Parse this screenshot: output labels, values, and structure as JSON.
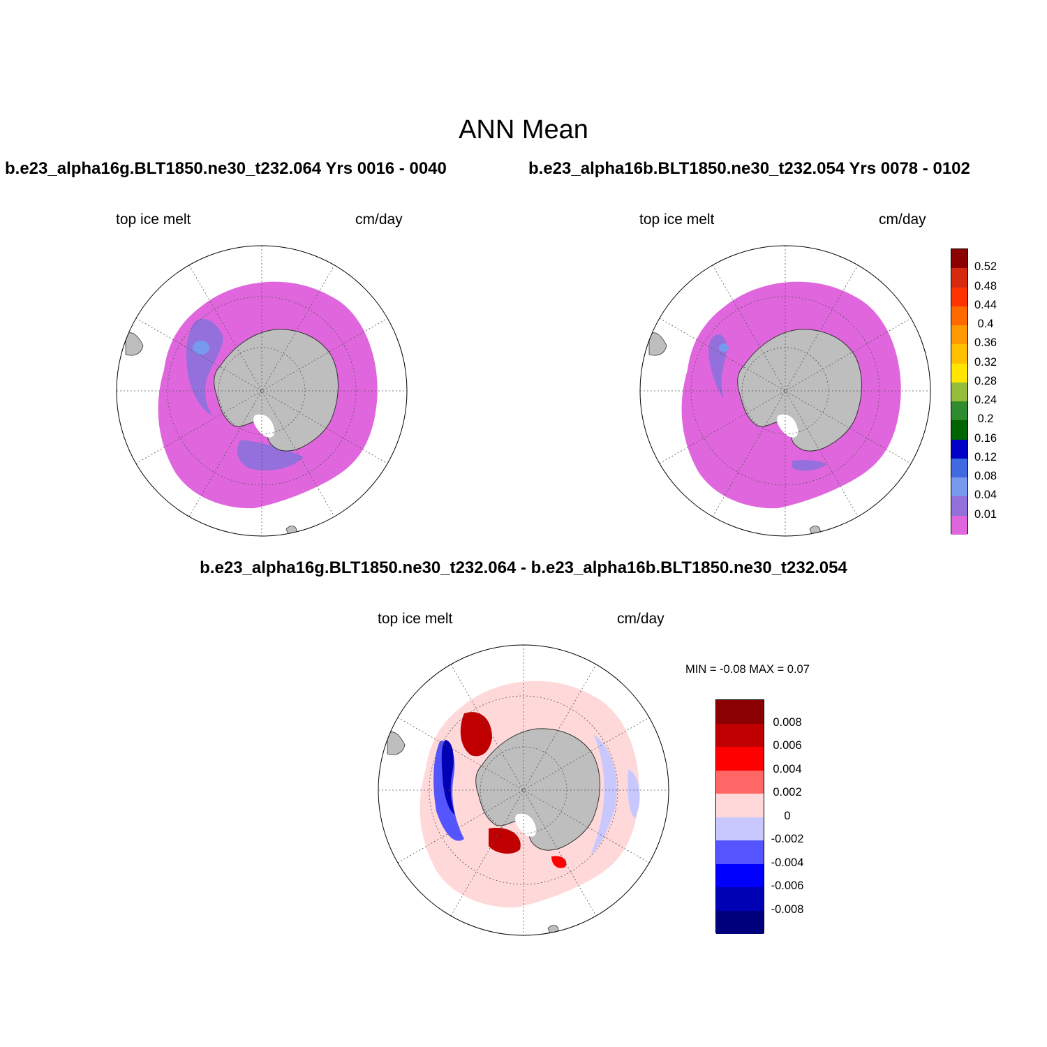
{
  "page": {
    "title": "ANN Mean",
    "left_run_title": "b.e23_alpha16g.BLT1850.ne30_t232.064  Yrs 0016 - 0040",
    "right_run_title": "b.e23_alpha16b.BLT1850.ne30_t232.054  Yrs 0078 - 0102",
    "diff_title": "b.e23_alpha16g.BLT1850.ne30_t232.064 - b.e23_alpha16b.BLT1850.ne30_t232.054"
  },
  "panels": [
    {
      "field": "top ice melt",
      "units": "cm/day"
    },
    {
      "field": "top ice melt",
      "units": "cm/day"
    },
    {
      "field": "top ice melt",
      "units": "cm/day"
    }
  ],
  "diff_stats": {
    "text": "MIN =  -0.08 MAX =   0.07"
  },
  "colorbar_main": {
    "labels": [
      "0.52",
      "0.48",
      "0.44",
      "0.4",
      "0.36",
      "0.32",
      "0.28",
      "0.24",
      "0.2",
      "0.16",
      "0.12",
      "0.08",
      "0.04",
      "0.01"
    ],
    "colors": [
      "#8b0000",
      "#d62a10",
      "#ff3300",
      "#ff6a00",
      "#ff9900",
      "#ffc000",
      "#ffe500",
      "#95be3c",
      "#2e8b2e",
      "#006400",
      "#0000c8",
      "#4169e1",
      "#7799ee",
      "#9370db",
      "#e066dd"
    ]
  },
  "colorbar_diff": {
    "labels": [
      "0.008",
      "0.006",
      "0.004",
      "0.002",
      "0",
      "-0.002",
      "-0.004",
      "-0.006",
      "-0.008"
    ],
    "colors": [
      "#8b0000",
      "#c00000",
      "#ff0000",
      "#ff6666",
      "#ffd9d9",
      "#c8c8ff",
      "#5555ff",
      "#0000ff",
      "#0000b4",
      "#00007d"
    ]
  },
  "map_colors": {
    "land": "#bebebe",
    "ice_melt_low": "#e066dd",
    "ice_melt_mid": "#9370db",
    "ice_melt_high": "#7799ee"
  }
}
